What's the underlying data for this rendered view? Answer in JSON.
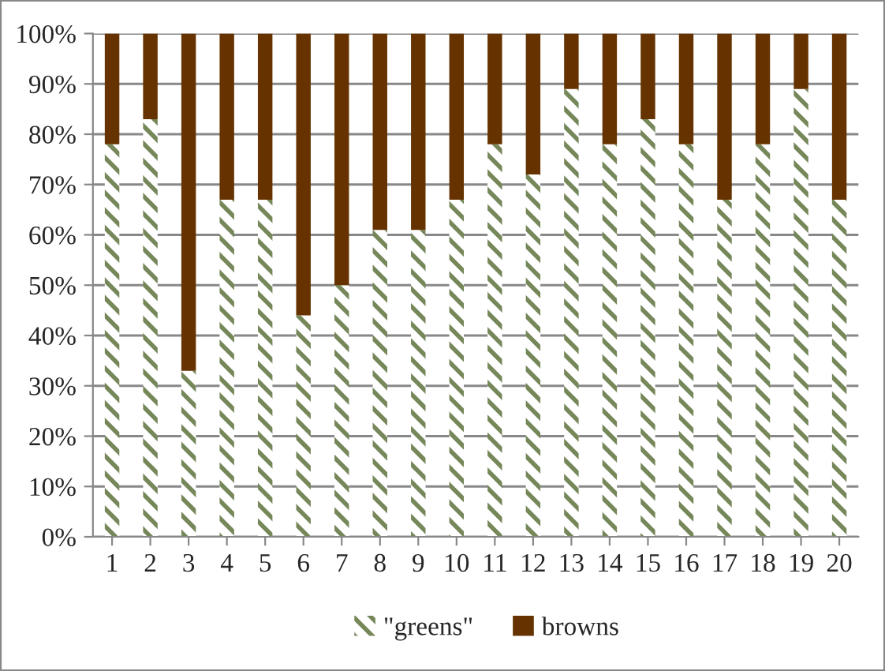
{
  "chart_data": {
    "type": "bar",
    "stacked": true,
    "categories": [
      "1",
      "2",
      "3",
      "4",
      "5",
      "6",
      "7",
      "8",
      "9",
      "10",
      "11",
      "12",
      "13",
      "14",
      "15",
      "16",
      "17",
      "18",
      "19",
      "20"
    ],
    "series": [
      {
        "name": "\"greens\"",
        "color": "#76875a",
        "values": [
          78,
          83,
          33,
          67,
          67,
          44,
          50,
          61,
          61,
          67,
          78,
          72,
          89,
          78,
          83,
          78,
          67,
          78,
          89,
          67
        ]
      },
      {
        "name": "browns",
        "color": "#663300",
        "values": [
          22,
          17,
          67,
          33,
          33,
          56,
          50,
          39,
          39,
          33,
          22,
          28,
          11,
          22,
          17,
          22,
          33,
          22,
          11,
          33
        ]
      }
    ],
    "ylim": [
      0,
      100
    ],
    "yticks": [
      {
        "value": 0,
        "label": "0%"
      },
      {
        "value": 10,
        "label": "10%"
      },
      {
        "value": 20,
        "label": "20%"
      },
      {
        "value": 30,
        "label": "30%"
      },
      {
        "value": 40,
        "label": "40%"
      },
      {
        "value": 50,
        "label": "50%"
      },
      {
        "value": 60,
        "label": "60%"
      },
      {
        "value": 70,
        "label": "70%"
      },
      {
        "value": 80,
        "label": "80%"
      },
      {
        "value": 90,
        "label": "90%"
      },
      {
        "value": 100,
        "label": "100%"
      }
    ],
    "grid": "y",
    "legend": "bottom"
  }
}
